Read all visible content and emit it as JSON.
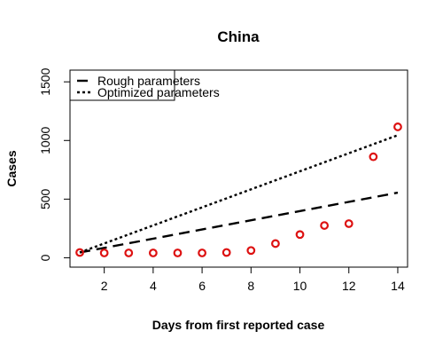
{
  "chart_data": {
    "type": "scatter",
    "title": "China",
    "xlabel": "Days from first reported case",
    "ylabel": "Cases",
    "xlim": [
      0.6,
      14.4
    ],
    "ylim": [
      -80,
      1600
    ],
    "xticks": [
      2,
      4,
      6,
      8,
      10,
      12,
      14
    ],
    "yticks": [
      0,
      500,
      1000,
      1500
    ],
    "grid": false,
    "legend_position": "top-left",
    "series": [
      {
        "kind": "points",
        "color": "#dd1111",
        "x": [
          1,
          2,
          3,
          4,
          5,
          6,
          7,
          8,
          9,
          10,
          11,
          12,
          13,
          14
        ],
        "y": [
          45,
          41,
          41,
          41,
          41,
          41,
          45,
          62,
          121,
          198,
          275,
          291,
          861,
          1116
        ]
      },
      {
        "kind": "line",
        "name": "Rough parameters",
        "style": "dashed",
        "color": "#000000",
        "x": [
          1,
          14
        ],
        "y": [
          45,
          555
        ]
      },
      {
        "kind": "line",
        "name": "Optimized parameters",
        "style": "dotted",
        "color": "#000000",
        "x": [
          1,
          14
        ],
        "y": [
          45,
          1045
        ]
      }
    ]
  }
}
